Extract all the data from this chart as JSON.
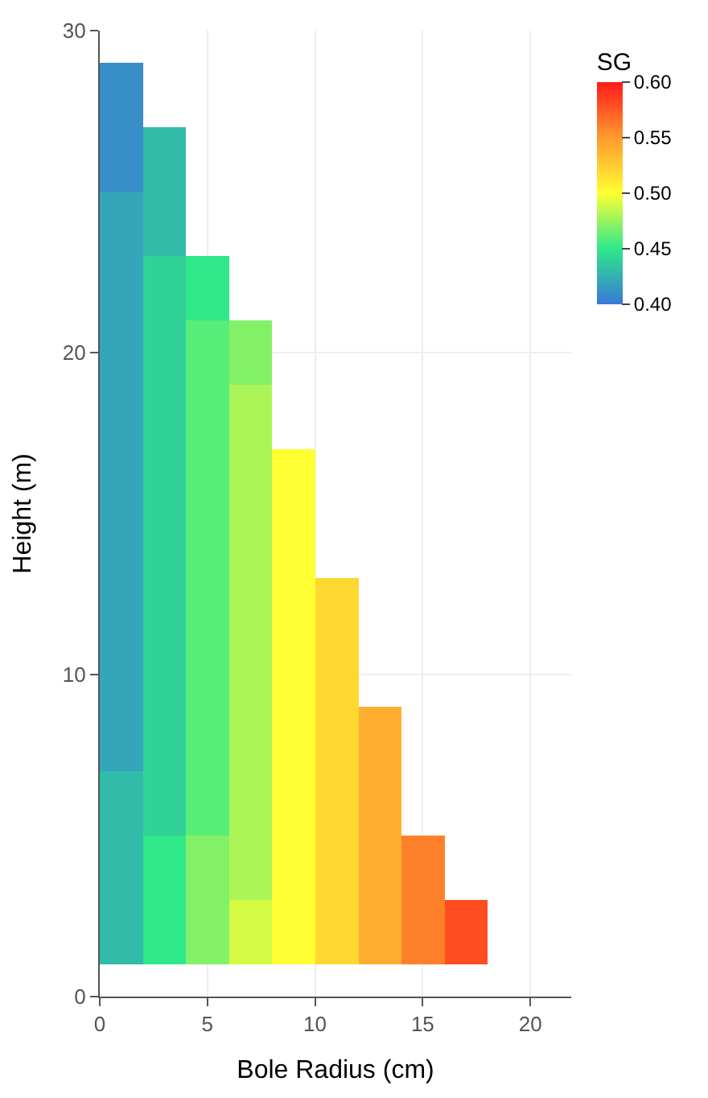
{
  "chart_data": {
    "type": "heatmap",
    "xlabel": "Bole Radius (cm)",
    "ylabel": "Height (m)",
    "clabel": "SG",
    "x": [
      1,
      3,
      5,
      7,
      9,
      11,
      13,
      15,
      17,
      19
    ],
    "y": [
      28,
      26,
      24,
      22,
      20,
      18,
      16,
      14,
      12,
      10,
      8,
      6,
      4,
      2
    ],
    "cells": [
      [
        0.41,
        null,
        null,
        null,
        null,
        null,
        null,
        null,
        null,
        null
      ],
      [
        0.41,
        0.43,
        null,
        null,
        null,
        null,
        null,
        null,
        null,
        null
      ],
      [
        0.42,
        0.43,
        null,
        null,
        null,
        null,
        null,
        null,
        null,
        null
      ],
      [
        0.42,
        0.44,
        0.45,
        null,
        null,
        null,
        null,
        null,
        null,
        null
      ],
      [
        0.42,
        0.44,
        0.46,
        0.47,
        null,
        null,
        null,
        null,
        null,
        null
      ],
      [
        0.42,
        0.44,
        0.46,
        0.48,
        null,
        null,
        null,
        null,
        null,
        null
      ],
      [
        0.42,
        0.44,
        0.46,
        0.48,
        0.5,
        null,
        null,
        null,
        null,
        null
      ],
      [
        0.42,
        0.44,
        0.46,
        0.48,
        0.5,
        null,
        null,
        null,
        null,
        null
      ],
      [
        0.42,
        0.44,
        0.46,
        0.48,
        0.5,
        0.52,
        null,
        null,
        null,
        null
      ],
      [
        0.42,
        0.44,
        0.46,
        0.48,
        0.5,
        0.52,
        null,
        null,
        null,
        null
      ],
      [
        0.42,
        0.44,
        0.46,
        0.48,
        0.5,
        0.52,
        0.54,
        null,
        null,
        null
      ],
      [
        0.43,
        0.44,
        0.46,
        0.48,
        0.5,
        0.52,
        0.54,
        null,
        null,
        null
      ],
      [
        0.43,
        0.45,
        0.47,
        0.48,
        0.5,
        0.52,
        0.54,
        0.56,
        null,
        null
      ],
      [
        0.43,
        0.45,
        0.47,
        0.49,
        0.5,
        0.52,
        0.54,
        0.56,
        0.58,
        null
      ]
    ],
    "clim": [
      0.4,
      0.6
    ],
    "cticks": [
      {
        "value": 0.4,
        "label": "0.40"
      },
      {
        "value": 0.45,
        "label": "0.45"
      },
      {
        "value": 0.5,
        "label": "0.50"
      },
      {
        "value": 0.55,
        "label": "0.55"
      },
      {
        "value": 0.6,
        "label": "0.60"
      }
    ],
    "xlim": [
      0,
      21.9
    ],
    "xticks": [
      0,
      5,
      10,
      15,
      20
    ],
    "ylim": [
      0,
      30
    ],
    "yticks": [
      0,
      10,
      20,
      30
    ],
    "grid": true
  }
}
